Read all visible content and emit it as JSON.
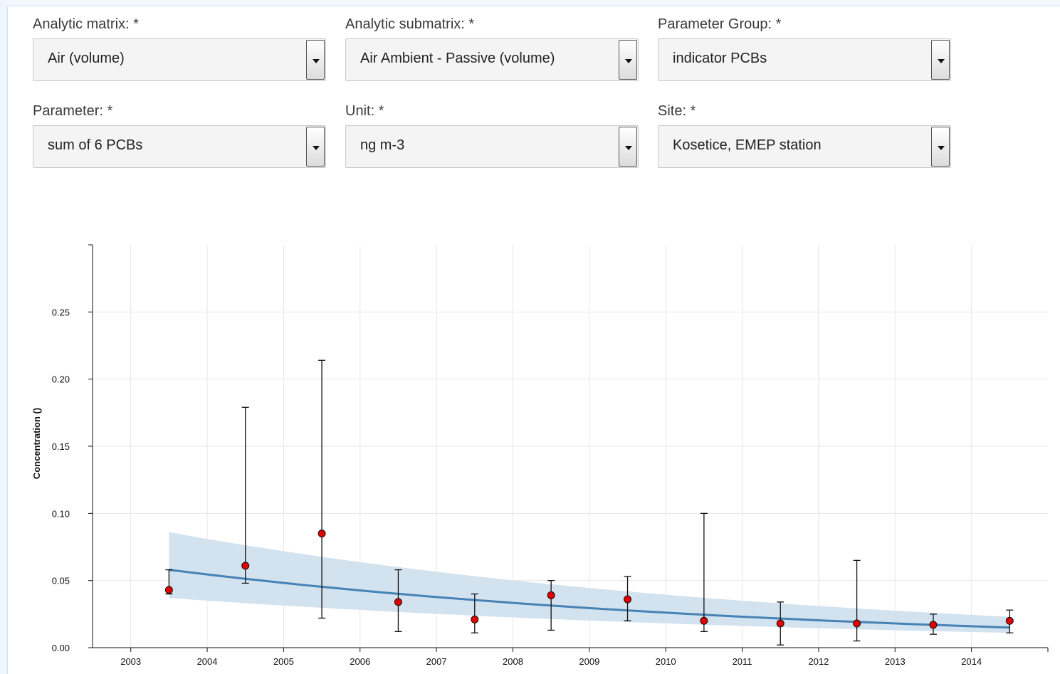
{
  "form": {
    "analytic_matrix": {
      "label": "Analytic matrix: *",
      "value": "Air (volume)"
    },
    "analytic_submatrix": {
      "label": "Analytic submatrix: *",
      "value": "Air Ambient - Passive (volume)"
    },
    "parameter_group": {
      "label": "Parameter Group: *",
      "value": "indicator PCBs"
    },
    "parameter": {
      "label": "Parameter: *",
      "value": "sum of 6 PCBs"
    },
    "unit": {
      "label": "Unit: *",
      "value": "ng m-3"
    },
    "site": {
      "label": "Site: *",
      "value": "Kosetice, EMEP station"
    }
  },
  "colors": {
    "point": "#e00000",
    "trend_line": "#4682b4",
    "confidence_band": "#d3e2ef",
    "grid": "#e6e6e6"
  },
  "chart_data": {
    "type": "scatter",
    "title": "",
    "xlabel": "",
    "ylabel": "Concentration ()",
    "xlim": [
      2002.5,
      2015.0
    ],
    "ylim": [
      0.0,
      0.3
    ],
    "x_ticks": [
      "2003",
      "2004",
      "2005",
      "2006",
      "2007",
      "2008",
      "2009",
      "2010",
      "2011",
      "2012",
      "2013",
      "2014"
    ],
    "y_ticks": [
      "0.00",
      "0.05",
      "0.10",
      "0.15",
      "0.20",
      "0.25"
    ],
    "grid": true,
    "legend": "none",
    "points": [
      {
        "x": 2003.5,
        "y": 0.043,
        "low": 0.04,
        "high": 0.058
      },
      {
        "x": 2004.5,
        "y": 0.061,
        "low": 0.048,
        "high": 0.179
      },
      {
        "x": 2005.5,
        "y": 0.085,
        "low": 0.022,
        "high": 0.214
      },
      {
        "x": 2006.5,
        "y": 0.034,
        "low": 0.012,
        "high": 0.058
      },
      {
        "x": 2007.5,
        "y": 0.021,
        "low": 0.011,
        "high": 0.04
      },
      {
        "x": 2008.5,
        "y": 0.039,
        "low": 0.013,
        "high": 0.05
      },
      {
        "x": 2009.5,
        "y": 0.036,
        "low": 0.02,
        "high": 0.053
      },
      {
        "x": 2010.5,
        "y": 0.02,
        "low": 0.012,
        "high": 0.1
      },
      {
        "x": 2011.5,
        "y": 0.018,
        "low": 0.002,
        "high": 0.034
      },
      {
        "x": 2012.5,
        "y": 0.018,
        "low": 0.005,
        "high": 0.065
      },
      {
        "x": 2013.5,
        "y": 0.017,
        "low": 0.01,
        "high": 0.025
      },
      {
        "x": 2014.5,
        "y": 0.02,
        "low": 0.011,
        "high": 0.028
      }
    ],
    "trend": {
      "x_start": 2003.5,
      "x_end": 2014.5,
      "y_start": 0.058,
      "y_end": 0.015,
      "band_upper_start": 0.086,
      "band_upper_end": 0.023,
      "band_lower_start": 0.037,
      "band_lower_end": 0.011
    }
  }
}
